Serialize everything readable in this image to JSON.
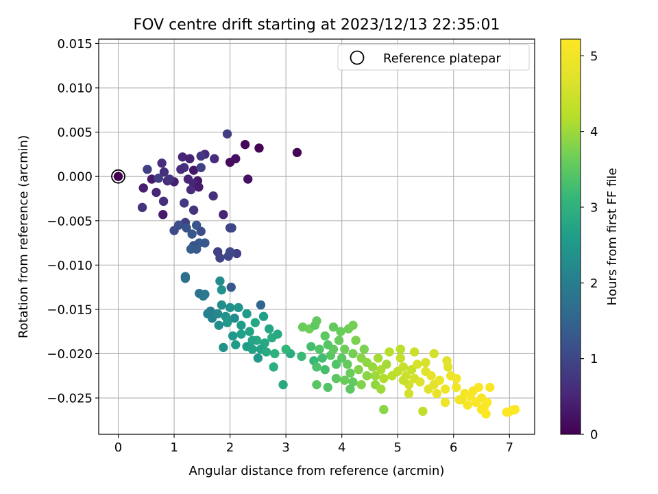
{
  "chart_data": {
    "type": "scatter",
    "title": "FOV centre drift starting at 2023/12/13 22:35:01",
    "xlabel": "Angular distance from reference (arcmin)",
    "ylabel": "Rotation from reference (arcmin)",
    "xlim": [
      -0.35,
      7.45
    ],
    "ylim": [
      -0.0291,
      0.0155
    ],
    "xticks": [
      0,
      1,
      2,
      3,
      4,
      5,
      6,
      7
    ],
    "yticks": [
      0.015,
      0.01,
      0.005,
      0.0,
      -0.005,
      -0.01,
      -0.015,
      -0.02,
      -0.025
    ],
    "ytick_labels": [
      "0.015",
      "0.010",
      "0.005",
      "0.000",
      "−0.005",
      "−0.010",
      "−0.015",
      "−0.020",
      "−0.025"
    ],
    "grid": true,
    "legend": {
      "placement": "top-right",
      "entries": [
        "Reference platepar"
      ]
    },
    "reference_point": {
      "x": 0,
      "y": 0
    },
    "colorbar": {
      "label": "Hours from first FF file",
      "range": [
        0,
        5.22
      ],
      "ticks": [
        0,
        1,
        2,
        3,
        4,
        5
      ],
      "colormap": "viridis"
    },
    "series": [
      {
        "values": [
          [
            0.0,
            0.0,
            0.0
          ],
          [
            2.52,
            0.0032,
            0.05
          ],
          [
            3.2,
            0.0027,
            0.05
          ],
          [
            2.27,
            0.0036,
            0.08
          ],
          [
            2.0,
            0.0016,
            0.15
          ],
          [
            0.8,
            -0.0043,
            0.35
          ],
          [
            2.32,
            -0.0003,
            0.2
          ],
          [
            2.1,
            0.002,
            0.2
          ],
          [
            1.35,
            0.0007,
            0.3
          ],
          [
            1.15,
            0.0022,
            0.5
          ],
          [
            1.0,
            -0.0006,
            0.4
          ],
          [
            0.88,
            -0.0005,
            0.55
          ],
          [
            1.42,
            -0.0005,
            0.3
          ],
          [
            0.6,
            -0.0003,
            0.35
          ],
          [
            0.45,
            -0.0013,
            0.4
          ],
          [
            0.43,
            -0.0035,
            0.7
          ],
          [
            0.68,
            -0.0018,
            0.5
          ],
          [
            0.78,
            0.0015,
            0.6
          ],
          [
            0.82,
            0.0005,
            0.65
          ],
          [
            1.28,
            0.002,
            0.45
          ],
          [
            1.55,
            0.0025,
            0.55
          ],
          [
            1.72,
            0.002,
            0.6
          ],
          [
            1.18,
            0.001,
            0.7
          ],
          [
            1.12,
            0.0008,
            0.6
          ],
          [
            1.25,
            -0.0003,
            0.5
          ],
          [
            1.35,
            -0.0008,
            0.5
          ],
          [
            1.44,
            -0.0012,
            0.35
          ],
          [
            0.92,
            -0.0003,
            0.7
          ],
          [
            0.52,
            0.0008,
            0.9
          ],
          [
            1.3,
            -0.0015,
            0.6
          ],
          [
            1.48,
            0.0023,
            0.75
          ],
          [
            1.95,
            0.0048,
            0.85
          ],
          [
            0.81,
            -0.0028,
            0.65
          ],
          [
            1.18,
            -0.003,
            0.8
          ],
          [
            1.35,
            -0.0038,
            0.7
          ],
          [
            1.7,
            -0.0022,
            0.65
          ],
          [
            1.48,
            0.001,
            0.9
          ],
          [
            0.72,
            -0.0002,
            0.85
          ],
          [
            1.2,
            -0.0052,
            0.9
          ],
          [
            1.88,
            -0.0043,
            0.5
          ],
          [
            2.0,
            -0.0058,
            0.95
          ],
          [
            2.03,
            -0.0058,
            1.0
          ],
          [
            1.0,
            -0.0061,
            1.05
          ],
          [
            1.08,
            -0.0055,
            1.15
          ],
          [
            1.22,
            -0.0058,
            1.2
          ],
          [
            1.32,
            -0.0065,
            1.3
          ],
          [
            1.4,
            -0.0055,
            1.25
          ],
          [
            1.45,
            -0.0075,
            1.35
          ],
          [
            1.35,
            -0.0078,
            1.2
          ],
          [
            1.55,
            -0.0075,
            1.3
          ],
          [
            1.3,
            -0.0082,
            1.4
          ],
          [
            1.48,
            -0.0062,
            1.1
          ],
          [
            1.4,
            -0.0082,
            1.35
          ],
          [
            1.78,
            -0.0085,
            0.9
          ],
          [
            1.82,
            -0.0092,
            0.95
          ],
          [
            1.97,
            -0.009,
            1.0
          ],
          [
            2.12,
            -0.0087,
            0.9
          ],
          [
            2.0,
            -0.0085,
            1.05
          ],
          [
            1.2,
            -0.0115,
            1.75
          ],
          [
            1.2,
            -0.0113,
            1.7
          ],
          [
            1.45,
            -0.0132,
            1.8
          ],
          [
            1.52,
            -0.0135,
            1.85
          ],
          [
            1.55,
            -0.0133,
            1.9
          ],
          [
            1.82,
            -0.0118,
            2.3
          ],
          [
            1.85,
            -0.0128,
            2.4
          ],
          [
            2.02,
            -0.0125,
            1.3
          ],
          [
            1.65,
            -0.0152,
            2.0
          ],
          [
            1.68,
            -0.016,
            2.1
          ],
          [
            1.78,
            -0.0155,
            2.2
          ],
          [
            1.85,
            -0.0145,
            2.3
          ],
          [
            1.92,
            -0.0158,
            2.4
          ],
          [
            2.0,
            -0.0148,
            2.35
          ],
          [
            2.08,
            -0.016,
            2.25
          ],
          [
            2.15,
            -0.0148,
            2.45
          ],
          [
            1.95,
            -0.0165,
            2.5
          ],
          [
            1.8,
            -0.0168,
            2.3
          ],
          [
            2.2,
            -0.0168,
            2.6
          ],
          [
            2.3,
            -0.0155,
            2.55
          ],
          [
            2.35,
            -0.0175,
            2.7
          ],
          [
            2.45,
            -0.0165,
            2.8
          ],
          [
            2.55,
            -0.0145,
            1.55
          ],
          [
            2.6,
            -0.0158,
            2.65
          ],
          [
            2.7,
            -0.0172,
            2.75
          ],
          [
            2.48,
            -0.0185,
            2.85
          ],
          [
            2.62,
            -0.0188,
            2.8
          ],
          [
            2.75,
            -0.0182,
            2.9
          ],
          [
            2.85,
            -0.0178,
            2.85
          ],
          [
            2.55,
            -0.0195,
            2.7
          ],
          [
            2.65,
            -0.0198,
            2.85
          ],
          [
            2.8,
            -0.02,
            3.0
          ],
          [
            2.5,
            -0.0205,
            2.5
          ],
          [
            2.78,
            -0.0215,
            2.95
          ],
          [
            2.95,
            -0.0235,
            2.85
          ],
          [
            3.08,
            -0.02,
            2.9
          ],
          [
            1.88,
            -0.0193,
            2.4
          ],
          [
            2.05,
            -0.018,
            2.5
          ],
          [
            2.1,
            -0.019,
            2.55
          ],
          [
            2.2,
            -0.0178,
            2.65
          ],
          [
            2.4,
            -0.0185,
            2.75
          ],
          [
            2.3,
            -0.0192,
            2.6
          ],
          [
            1.6,
            -0.0155,
            2.05
          ],
          [
            2.4,
            -0.0195,
            2.7
          ],
          [
            3.0,
            -0.0195,
            3.1
          ],
          [
            3.3,
            -0.017,
            3.6
          ],
          [
            3.42,
            -0.0172,
            3.65
          ],
          [
            3.52,
            -0.0168,
            3.5
          ],
          [
            3.55,
            -0.0163,
            3.55
          ],
          [
            3.28,
            -0.0203,
            3.2
          ],
          [
            3.45,
            -0.0192,
            3.3
          ],
          [
            3.6,
            -0.0195,
            3.4
          ],
          [
            3.5,
            -0.0208,
            3.15
          ],
          [
            3.65,
            -0.0205,
            3.25
          ],
          [
            3.55,
            -0.0215,
            3.35
          ],
          [
            3.7,
            -0.0218,
            3.3
          ],
          [
            3.8,
            -0.0202,
            3.45
          ],
          [
            3.85,
            -0.0195,
            3.55
          ],
          [
            3.9,
            -0.0212,
            3.4
          ],
          [
            3.95,
            -0.0185,
            3.6
          ],
          [
            4.0,
            -0.0205,
            3.5
          ],
          [
            4.05,
            -0.0195,
            3.65
          ],
          [
            4.1,
            -0.0212,
            3.55
          ],
          [
            4.2,
            -0.02,
            3.7
          ],
          [
            4.25,
            -0.0185,
            3.75
          ],
          [
            4.15,
            -0.0222,
            3.6
          ],
          [
            3.9,
            -0.0228,
            3.5
          ],
          [
            4.05,
            -0.023,
            3.6
          ],
          [
            4.2,
            -0.0232,
            3.55
          ],
          [
            4.3,
            -0.0218,
            3.8
          ],
          [
            4.35,
            -0.0205,
            3.85
          ],
          [
            4.4,
            -0.0195,
            3.75
          ],
          [
            4.45,
            -0.021,
            3.9
          ],
          [
            4.55,
            -0.0215,
            3.95
          ],
          [
            4.6,
            -0.0225,
            4.0
          ],
          [
            4.65,
            -0.0205,
            4.05
          ],
          [
            4.7,
            -0.0218,
            4.1
          ],
          [
            4.75,
            -0.0228,
            4.15
          ],
          [
            4.8,
            -0.0212,
            4.05
          ],
          [
            4.85,
            -0.0198,
            4.2
          ],
          [
            4.9,
            -0.0225,
            4.25
          ],
          [
            5.0,
            -0.022,
            4.3
          ],
          [
            5.05,
            -0.0205,
            4.35
          ],
          [
            5.1,
            -0.0215,
            4.4
          ],
          [
            5.15,
            -0.0225,
            4.45
          ],
          [
            5.2,
            -0.0235,
            4.5
          ],
          [
            5.25,
            -0.0218,
            4.4
          ],
          [
            5.3,
            -0.0228,
            4.55
          ],
          [
            5.35,
            -0.0212,
            4.6
          ],
          [
            5.4,
            -0.0232,
            4.65
          ],
          [
            5.5,
            -0.022,
            4.7
          ],
          [
            5.55,
            -0.024,
            4.75
          ],
          [
            5.6,
            -0.0225,
            4.8
          ],
          [
            5.65,
            -0.0235,
            4.75
          ],
          [
            5.7,
            -0.0245,
            4.85
          ],
          [
            5.75,
            -0.023,
            4.9
          ],
          [
            5.85,
            -0.024,
            4.95
          ],
          [
            5.88,
            -0.0208,
            4.75
          ],
          [
            5.9,
            -0.0215,
            4.7
          ],
          [
            5.65,
            -0.02,
            4.5
          ],
          [
            5.05,
            -0.0195,
            4.25
          ],
          [
            5.1,
            -0.023,
            4.4
          ],
          [
            5.2,
            -0.0245,
            4.55
          ],
          [
            5.45,
            -0.0265,
            4.3
          ],
          [
            4.75,
            -0.0263,
            3.85
          ],
          [
            4.35,
            -0.0235,
            3.8
          ],
          [
            4.6,
            -0.0235,
            3.9
          ],
          [
            4.7,
            -0.024,
            4.0
          ],
          [
            3.55,
            -0.0235,
            3.45
          ],
          [
            3.75,
            -0.0238,
            3.4
          ],
          [
            4.15,
            -0.024,
            3.5
          ],
          [
            5.85,
            -0.0255,
            4.95
          ],
          [
            6.05,
            -0.0238,
            5.0
          ],
          [
            6.1,
            -0.0252,
            5.05
          ],
          [
            6.2,
            -0.0245,
            5.05
          ],
          [
            6.3,
            -0.0248,
            5.1
          ],
          [
            6.35,
            -0.0242,
            5.1
          ],
          [
            6.4,
            -0.0255,
            5.15
          ],
          [
            6.45,
            -0.0238,
            5.15
          ],
          [
            6.5,
            -0.025,
            5.12
          ],
          [
            6.55,
            -0.026,
            5.18
          ],
          [
            6.6,
            -0.0255,
            5.2
          ],
          [
            6.65,
            -0.0238,
            5.15
          ],
          [
            6.05,
            -0.0228,
            5.05
          ],
          [
            6.15,
            -0.0252,
            5.0
          ],
          [
            6.25,
            -0.0258,
            5.08
          ],
          [
            6.5,
            -0.0263,
            5.15
          ],
          [
            6.58,
            -0.0268,
            5.2
          ],
          [
            6.98,
            -0.0266,
            5.22
          ],
          [
            7.05,
            -0.0264,
            5.22
          ],
          [
            7.1,
            -0.0263,
            5.22
          ],
          [
            6.95,
            -0.0266,
            5.2
          ],
          [
            5.95,
            -0.0225,
            4.95
          ],
          [
            5.5,
            -0.021,
            4.6
          ],
          [
            5.3,
            -0.0198,
            4.45
          ],
          [
            4.45,
            -0.0225,
            3.85
          ],
          [
            3.98,
            -0.0175,
            3.6
          ],
          [
            4.12,
            -0.0172,
            3.65
          ],
          [
            4.2,
            -0.0168,
            3.7
          ],
          [
            3.85,
            -0.017,
            3.55
          ],
          [
            3.7,
            -0.018,
            3.5
          ],
          [
            3.75,
            -0.019,
            3.45
          ]
        ]
      }
    ]
  }
}
